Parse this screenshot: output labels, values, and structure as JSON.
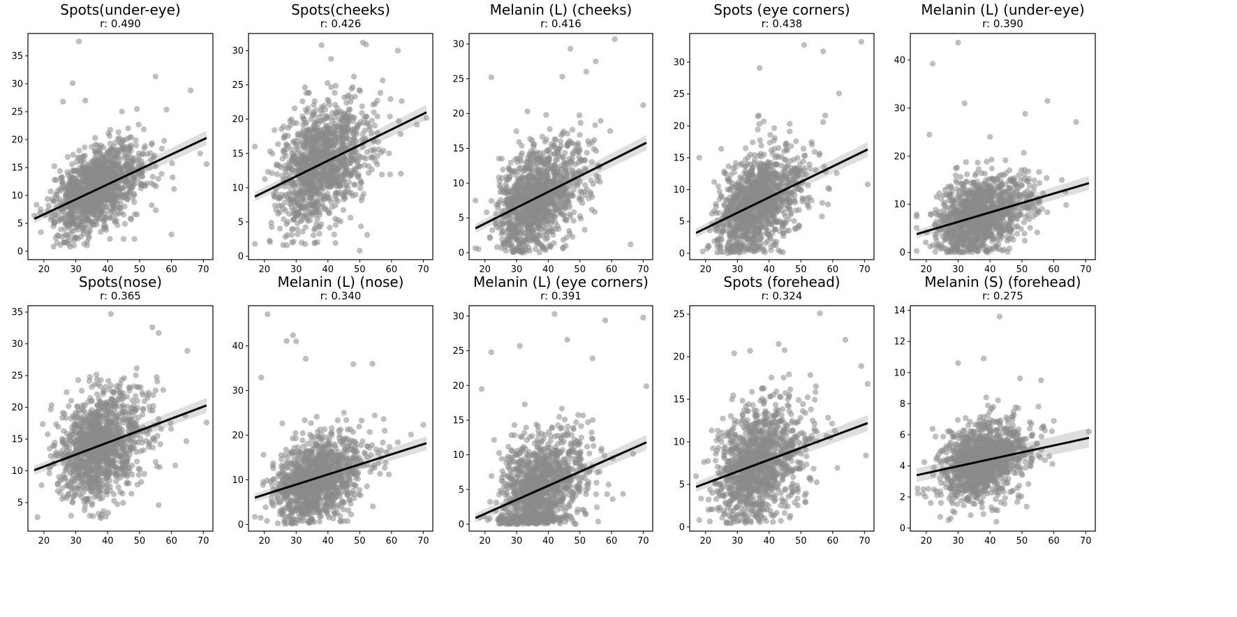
{
  "figure": {
    "axis_color": "#000000",
    "point_color": "#8a8a8a",
    "line_color": "#000000",
    "ci_color": "#c8c8c8"
  },
  "chart_data": [
    {
      "type": "scatter",
      "title": "Spots(under-eye)",
      "subtitle": "r: 0.490",
      "xlim": [
        15,
        73
      ],
      "ylim": [
        -1.5,
        39
      ],
      "xticks": [
        20,
        30,
        40,
        50,
        60,
        70
      ],
      "yticks": [
        0,
        5,
        10,
        15,
        20,
        25,
        30,
        35
      ],
      "regression": {
        "x": [
          17,
          71
        ],
        "y": [
          5.8,
          20.3
        ]
      },
      "cloud": {
        "seed": 11,
        "n": 1200,
        "x_center": 33,
        "x_spread": 9,
        "resid_sd": 3.6,
        "y_floor": 0.8
      },
      "outliers": [
        [
          31,
          37.6
        ],
        [
          29,
          30.1
        ],
        [
          26,
          26.8
        ],
        [
          33,
          27.0
        ],
        [
          55,
          31.3
        ],
        [
          66,
          28.8
        ],
        [
          69,
          17.5
        ],
        [
          71,
          15.6
        ],
        [
          60,
          3.0
        ],
        [
          45,
          2.2
        ],
        [
          19,
          7.5
        ]
      ]
    },
    {
      "type": "scatter",
      "title": "Spots(cheeks)",
      "subtitle": "r: 0.426",
      "xlim": [
        15,
        73
      ],
      "ylim": [
        -0.5,
        32.5
      ],
      "xticks": [
        20,
        30,
        40,
        50,
        60,
        70
      ],
      "yticks": [
        0,
        5,
        10,
        15,
        20,
        25,
        30
      ],
      "regression": {
        "x": [
          17,
          71
        ],
        "y": [
          8.7,
          21.0
        ]
      },
      "cloud": {
        "seed": 22,
        "n": 1200,
        "x_center": 34,
        "x_spread": 9,
        "resid_sd": 4.2,
        "y_floor": 1.5
      },
      "outliers": [
        [
          38,
          30.8
        ],
        [
          51,
          31.2
        ],
        [
          52,
          30.9
        ],
        [
          62,
          30.0
        ],
        [
          17,
          16.0
        ],
        [
          17,
          1.8
        ],
        [
          50,
          0.8
        ],
        [
          68,
          19.2
        ],
        [
          71,
          20.2
        ],
        [
          41,
          28.8
        ]
      ]
    },
    {
      "type": "scatter",
      "title": "Melanin (L) (cheeks)",
      "subtitle": "r: 0.416",
      "xlim": [
        15,
        73
      ],
      "ylim": [
        -1,
        31.5
      ],
      "xticks": [
        20,
        30,
        40,
        50,
        60,
        70
      ],
      "yticks": [
        0,
        5,
        10,
        15,
        20,
        25,
        30
      ],
      "regression": {
        "x": [
          17,
          71
        ],
        "y": [
          3.5,
          15.8
        ]
      },
      "cloud": {
        "seed": 33,
        "n": 1200,
        "x_center": 33,
        "x_spread": 9,
        "resid_sd": 3.8,
        "y_floor": 0
      },
      "outliers": [
        [
          22,
          25.2
        ],
        [
          61,
          30.7
        ],
        [
          47,
          29.3
        ],
        [
          52,
          26.0
        ],
        [
          55,
          27.5
        ],
        [
          70,
          21.2
        ],
        [
          66,
          1.2
        ],
        [
          18,
          0.5
        ],
        [
          17,
          7.5
        ]
      ]
    },
    {
      "type": "scatter",
      "title": "Spots (eye corners)",
      "subtitle": "r: 0.438",
      "xlim": [
        15,
        73
      ],
      "ylim": [
        -1,
        34.5
      ],
      "xticks": [
        20,
        30,
        40,
        50,
        60,
        70
      ],
      "yticks": [
        0,
        5,
        10,
        15,
        20,
        25,
        30
      ],
      "regression": {
        "x": [
          17,
          71
        ],
        "y": [
          3.2,
          16.3
        ]
      },
      "cloud": {
        "seed": 44,
        "n": 1200,
        "x_center": 33,
        "x_spread": 9,
        "resid_sd": 3.9,
        "y_floor": 0
      },
      "outliers": [
        [
          51,
          32.7
        ],
        [
          69,
          33.2
        ],
        [
          57,
          31.7
        ],
        [
          37,
          29.1
        ],
        [
          62,
          25.1
        ],
        [
          18,
          15.0
        ],
        [
          71,
          10.8
        ]
      ]
    },
    {
      "type": "scatter",
      "title": "Melanin (L) (under-eye)",
      "subtitle": "r: 0.390",
      "xlim": [
        15,
        73
      ],
      "ylim": [
        -1.5,
        45.5
      ],
      "xticks": [
        20,
        30,
        40,
        50,
        60,
        70
      ],
      "yticks": [
        0,
        10,
        20,
        30,
        40
      ],
      "regression": {
        "x": [
          17,
          71
        ],
        "y": [
          3.8,
          14.4
        ]
      },
      "cloud": {
        "seed": 55,
        "n": 1200,
        "x_center": 33,
        "x_spread": 9,
        "resid_sd": 4.0,
        "y_floor": 0
      },
      "outliers": [
        [
          30,
          43.6
        ],
        [
          22,
          39.2
        ],
        [
          32,
          31.0
        ],
        [
          58,
          31.5
        ],
        [
          51,
          28.8
        ],
        [
          67,
          27.1
        ],
        [
          21,
          24.5
        ],
        [
          17,
          0.3
        ],
        [
          40,
          24.0
        ]
      ]
    },
    {
      "type": "scatter",
      "title": "Spots(nose)",
      "subtitle": "r: 0.365",
      "xlim": [
        15,
        73
      ],
      "ylim": [
        0.5,
        36
      ],
      "xticks": [
        20,
        30,
        40,
        50,
        60,
        70
      ],
      "yticks": [
        5,
        10,
        15,
        20,
        25,
        30,
        35
      ],
      "regression": {
        "x": [
          17,
          71
        ],
        "y": [
          10.1,
          20.3
        ]
      },
      "cloud": {
        "seed": 66,
        "n": 1200,
        "x_center": 34,
        "x_spread": 9,
        "resid_sd": 4.3,
        "y_floor": 2.2
      },
      "outliers": [
        [
          41,
          34.7
        ],
        [
          54,
          32.6
        ],
        [
          56,
          31.7
        ],
        [
          65,
          28.9
        ],
        [
          18,
          2.7
        ],
        [
          56,
          4.6
        ],
        [
          71,
          17.6
        ]
      ]
    },
    {
      "type": "scatter",
      "title": "Melanin (L) (nose)",
      "subtitle": "r: 0.340",
      "xlim": [
        15,
        73
      ],
      "ylim": [
        -1.5,
        49
      ],
      "xticks": [
        20,
        30,
        40,
        50,
        60,
        70
      ],
      "yticks": [
        0,
        10,
        20,
        30,
        40
      ],
      "regression": {
        "x": [
          17,
          71
        ],
        "y": [
          6.0,
          18.2
        ]
      },
      "cloud": {
        "seed": 77,
        "n": 1200,
        "x_center": 33,
        "x_spread": 9,
        "resid_sd": 4.6,
        "y_floor": 0
      },
      "outliers": [
        [
          21,
          47.1
        ],
        [
          29,
          42.4
        ],
        [
          30,
          41.0
        ],
        [
          27,
          41.1
        ],
        [
          33,
          37.1
        ],
        [
          19,
          32.9
        ],
        [
          54,
          36.0
        ],
        [
          48,
          35.9
        ],
        [
          70,
          22.3
        ]
      ]
    },
    {
      "type": "scatter",
      "title": "Melanin (L) (eye corners)",
      "subtitle": "r: 0.391",
      "xlim": [
        15,
        73
      ],
      "ylim": [
        -1,
        31.5
      ],
      "xticks": [
        20,
        30,
        40,
        50,
        60,
        70
      ],
      "yticks": [
        0,
        5,
        10,
        15,
        20,
        25,
        30
      ],
      "regression": {
        "x": [
          17,
          71
        ],
        "y": [
          0.9,
          11.8
        ]
      },
      "cloud": {
        "seed": 88,
        "n": 1200,
        "x_center": 34,
        "x_spread": 9,
        "resid_sd": 4.0,
        "y_floor": 0
      },
      "outliers": [
        [
          42,
          30.3
        ],
        [
          70,
          29.8
        ],
        [
          58,
          29.4
        ],
        [
          22,
          24.8
        ],
        [
          31,
          25.7
        ],
        [
          46,
          26.6
        ],
        [
          54,
          23.9
        ],
        [
          19,
          19.5
        ],
        [
          71,
          19.9
        ]
      ]
    },
    {
      "type": "scatter",
      "title": "Spots (forehead)",
      "subtitle": "r: 0.324",
      "xlim": [
        15,
        73
      ],
      "ylim": [
        -0.5,
        26
      ],
      "xticks": [
        20,
        30,
        40,
        50,
        60,
        70
      ],
      "yticks": [
        0,
        5,
        10,
        15,
        20,
        25
      ],
      "regression": {
        "x": [
          17,
          71
        ],
        "y": [
          4.7,
          12.2
        ]
      },
      "cloud": {
        "seed": 99,
        "n": 1200,
        "x_center": 33,
        "x_spread": 9,
        "resid_sd": 3.3,
        "y_floor": 0.4
      },
      "outliers": [
        [
          56,
          25.1
        ],
        [
          43,
          21.5
        ],
        [
          34,
          20.7
        ],
        [
          29,
          20.4
        ],
        [
          64,
          22.0
        ],
        [
          18,
          0.8
        ],
        [
          69,
          18.9
        ],
        [
          71,
          16.8
        ]
      ]
    },
    {
      "type": "scatter",
      "title": "Melanin (S) (forehead)",
      "subtitle": "r: 0.275",
      "xlim": [
        15,
        73
      ],
      "ylim": [
        -0.2,
        14.3
      ],
      "xticks": [
        20,
        30,
        40,
        50,
        60,
        70
      ],
      "yticks": [
        0,
        2,
        4,
        6,
        8,
        10,
        12,
        14
      ],
      "regression": {
        "x": [
          17,
          71
        ],
        "y": [
          3.4,
          5.8
        ]
      },
      "cloud": {
        "seed": 111,
        "n": 1200,
        "x_center": 34,
        "x_spread": 9,
        "resid_sd": 1.25,
        "y_floor": 0.4
      },
      "outliers": [
        [
          43,
          13.6
        ],
        [
          30,
          10.6
        ],
        [
          38,
          10.9
        ],
        [
          56,
          9.5
        ],
        [
          42,
          0.4
        ],
        [
          19,
          2.2
        ],
        [
          71,
          6.2
        ]
      ]
    }
  ]
}
